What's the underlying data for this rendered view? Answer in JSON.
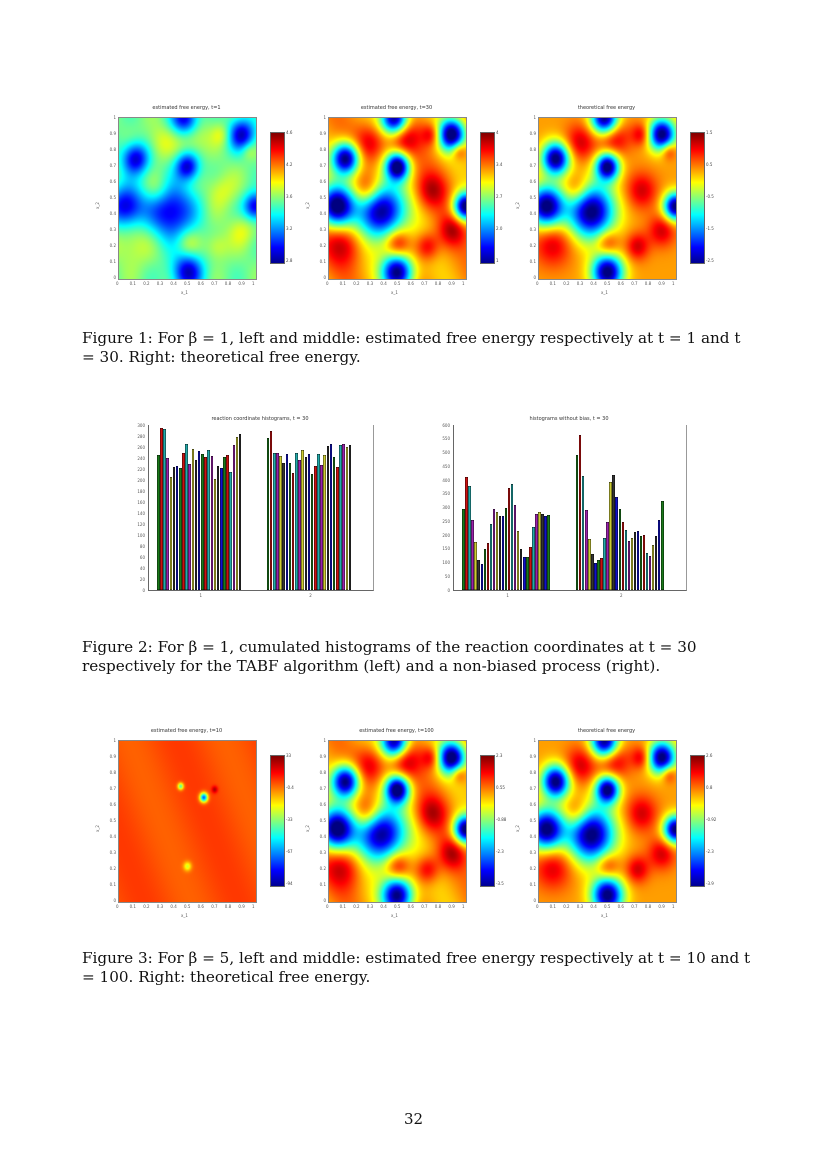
{
  "figure1": {
    "panels": [
      {
        "title": "estimated free energy, t=1",
        "xlabel": "x_1",
        "ylabel": "x_2",
        "colorbar": [
          "4.6",
          "4.2",
          "3.6",
          "3.2",
          "2.8"
        ]
      },
      {
        "title": "estimated free energy, t=30",
        "xlabel": "x_1",
        "ylabel": "x_2",
        "colorbar": [
          "4",
          "3.4",
          "2.7",
          "2.0",
          "1"
        ]
      },
      {
        "title": "theoretical free energy",
        "xlabel": "x_1",
        "ylabel": "x_2",
        "colorbar": [
          "1.5",
          "0.5",
          "-0.5",
          "-1.5",
          "-2.5"
        ]
      }
    ],
    "caption": "Figure 1: For β = 1, left and middle: estimated free energy respectively at t = 1 and t = 30. Right: theoretical free energy."
  },
  "figure2": {
    "chart_data": [
      {
        "type": "bar",
        "title": "reaction coordinate histograms, t = 30",
        "categories": [
          "1",
          "2"
        ],
        "ylim": [
          0,
          300
        ],
        "yticks": [
          "0",
          "20",
          "40",
          "60",
          "80",
          "100",
          "120",
          "140",
          "160",
          "180",
          "200",
          "220",
          "240",
          "260",
          "280",
          "300"
        ],
        "groups": [
          [
            245,
            295,
            293,
            240,
            205,
            223,
            225,
            222,
            250,
            266,
            230,
            257,
            237,
            252,
            247,
            241,
            255,
            243,
            202,
            225,
            222,
            241,
            246,
            215,
            264,
            279,
            283
          ],
          [
            276,
            290,
            250,
            250,
            243,
            231,
            248,
            231,
            212,
            250,
            236,
            254,
            241,
            247,
            211,
            226,
            247,
            227,
            246,
            262,
            266,
            241,
            224,
            264,
            266,
            260,
            264
          ]
        ]
      },
      {
        "type": "bar",
        "title": "histograms without bias, t = 30",
        "categories": [
          "1",
          "2"
        ],
        "ylim": [
          0,
          600
        ],
        "yticks": [
          "0",
          "50",
          "100",
          "150",
          "200",
          "250",
          "300",
          "350",
          "400",
          "450",
          "500",
          "550",
          "600"
        ],
        "groups": [
          [
            295,
            410,
            378,
            255,
            175,
            110,
            95,
            150,
            170,
            240,
            296,
            283,
            270,
            270,
            300,
            370,
            385,
            310,
            215,
            150,
            120,
            120,
            155,
            230,
            278,
            282,
            278,
            270,
            272
          ],
          [
            490,
            565,
            415,
            290,
            185,
            130,
            97,
            110,
            117,
            190,
            246,
            393,
            420,
            340,
            295,
            248,
            220,
            180,
            190,
            210,
            215,
            195,
            200,
            135,
            125,
            162,
            195,
            255,
            325
          ]
        ]
      }
    ],
    "caption": "Figure 2: For β = 1, cumulated histograms of the reaction coordinates at t = 30 respectively for the TABF algorithm (left) and a non-biased process (right)."
  },
  "figure3": {
    "panels": [
      {
        "title": "estimated free energy, t=10",
        "xlabel": "x_1",
        "ylabel": "x_2",
        "colorbar": [
          "33",
          "-0.4",
          "-33",
          "-67",
          "-94"
        ]
      },
      {
        "title": "estimated free energy, t=100",
        "xlabel": "x_1",
        "ylabel": "x_2",
        "colorbar": [
          "2.3",
          "0.55",
          "-0.88",
          "-2.3",
          "-3.5"
        ]
      },
      {
        "title": "theoretical free energy",
        "xlabel": "x_1",
        "ylabel": "x_2",
        "colorbar": [
          "2.6",
          "0.8",
          "-0.92",
          "-2.3",
          "-3.9"
        ]
      }
    ],
    "caption": "Figure 3: For β = 5, left and middle: estimated free energy respectively at t = 10 and t = 100. Right: theoretical free energy."
  },
  "axis_ticks": [
    "0",
    "0.1",
    "0.2",
    "0.3",
    "0.4",
    "0.5",
    "0.6",
    "0.7",
    "0.8",
    "0.9",
    "1"
  ],
  "page_number": "32",
  "colors": {
    "bar_cycle": [
      "#1a7a1a",
      "#cc1111",
      "#22aaaa",
      "#9922aa",
      "#cccc33",
      "#333333",
      "#1111cc"
    ]
  }
}
